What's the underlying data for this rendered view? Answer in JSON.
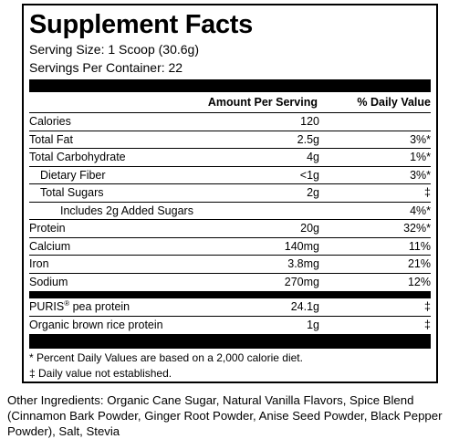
{
  "panel": {
    "title": "Supplement Facts",
    "serving_size": "Serving Size: 1 Scoop (30.6g)",
    "servings_per_container": "Servings Per Container: 22"
  },
  "table": {
    "header": {
      "amount": "Amount Per Serving",
      "dv": "% Daily Value"
    },
    "group1": [
      {
        "name": "Calories",
        "amount": "120",
        "dv": ""
      },
      {
        "name": "Total Fat",
        "amount": "2.5g",
        "dv": "3%*"
      },
      {
        "name": "Total Carbohydrate",
        "amount": "4g",
        "dv": "1%*"
      },
      {
        "name": "Dietary Fiber",
        "amount": "<1g",
        "dv": "3%*"
      },
      {
        "name": "Total Sugars",
        "amount": "2g",
        "dv": "‡"
      },
      {
        "name": "Includes 2g Added Sugars",
        "amount": "",
        "dv": "4%*"
      },
      {
        "name": "Protein",
        "amount": "20g",
        "dv": "32%*"
      },
      {
        "name": "Calcium",
        "amount": "140mg",
        "dv": "11%"
      },
      {
        "name": "Iron",
        "amount": "3.8mg",
        "dv": "21%"
      },
      {
        "name": "Sodium",
        "amount": "270mg",
        "dv": "12%"
      }
    ],
    "group2": [
      {
        "name": "PURIS",
        "reg": "®",
        "name_suffix": " pea protein",
        "amount": "24.1g",
        "dv": "‡"
      },
      {
        "name": "Organic brown rice protein",
        "amount": "1g",
        "dv": "‡"
      }
    ]
  },
  "footnotes": {
    "line1": "* Percent Daily Values are based on a 2,000 calorie diet.",
    "line2": "‡ Daily value not established."
  },
  "ingredients": "Other Ingredients: Organic Cane Sugar, Natural Vanilla Flavors, Spice Blend (Cinnamon Bark Powder, Ginger Root Powder, Anise Seed Powder, Black Pepper Powder), Salt, Stevia"
}
